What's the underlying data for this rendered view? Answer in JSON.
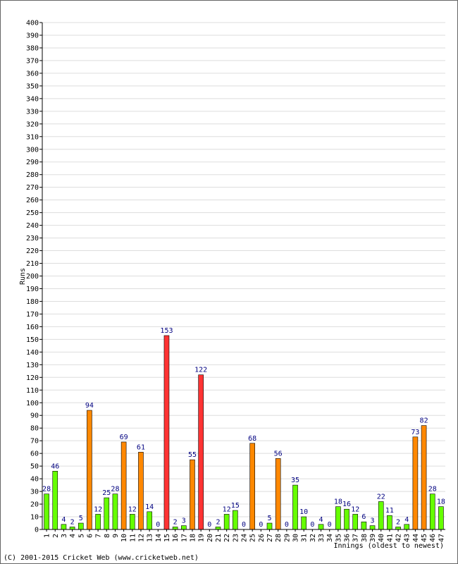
{
  "footer": {
    "copyright": "(C) 2001-2015 Cricket Web (www.cricketweb.net)"
  },
  "chart_data": {
    "type": "bar",
    "title": "",
    "xlabel": "Innings (oldest to newest)",
    "ylabel": "Runs",
    "ylim": [
      0,
      400
    ],
    "ytick_step": 10,
    "grid": true,
    "legend": "none",
    "colors": {
      "under_50": "#66ff00",
      "fifty": "#ff8800",
      "hundred": "#ff3333",
      "outline": "#000000",
      "data_label": "#000080",
      "grid": "#dddddd",
      "axis": "#000000"
    },
    "categories": [
      "1",
      "2",
      "3",
      "4",
      "5",
      "6",
      "7",
      "8",
      "9",
      "10",
      "11",
      "12",
      "13",
      "14",
      "15",
      "16",
      "17",
      "18",
      "19",
      "20",
      "21",
      "22",
      "23",
      "24",
      "25",
      "26",
      "27",
      "28",
      "29",
      "30",
      "31",
      "32",
      "33",
      "34",
      "35",
      "36",
      "37",
      "38",
      "39",
      "40",
      "41",
      "42",
      "43",
      "44",
      "45",
      "46",
      "47"
    ],
    "values": [
      28,
      46,
      4,
      2,
      5,
      94,
      12,
      25,
      28,
      69,
      12,
      61,
      14,
      0,
      153,
      2,
      3,
      55,
      122,
      0,
      2,
      12,
      15,
      0,
      68,
      0,
      5,
      56,
      0,
      35,
      10,
      0,
      4,
      0,
      18,
      16,
      12,
      6,
      3,
      22,
      11,
      2,
      4,
      73,
      82,
      28,
      18
    ]
  }
}
